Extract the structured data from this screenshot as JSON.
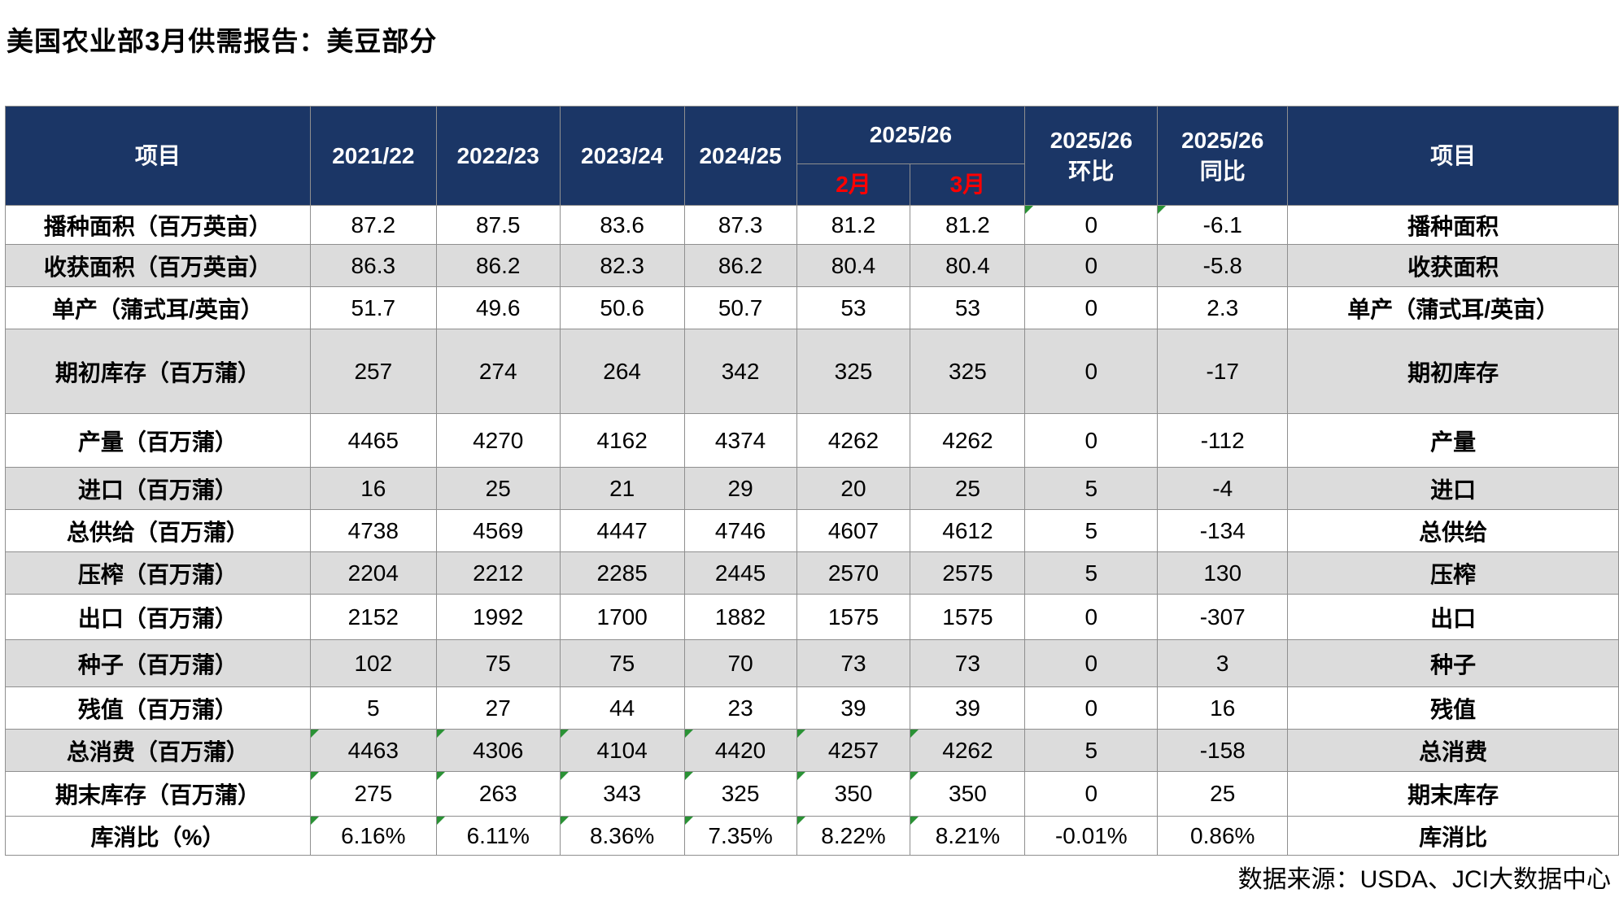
{
  "title": "美国农业部3月供需报告：美豆部分",
  "source_note": "数据来源：USDA、JCI大数据中心",
  "colors": {
    "header_bg": "#1b3666",
    "row_alt": "#dcdcdc",
    "month_red": "#ff0000",
    "flag_green": "#2a9235",
    "grid": "#8f8f8f"
  },
  "table": {
    "header": {
      "item_label": "项目",
      "years": [
        "2021/22",
        "2022/23",
        "2023/24",
        "2024/25"
      ],
      "group_label": "2025/26",
      "months": [
        "2月",
        "3月"
      ],
      "mom_label": "2025/26\n环比",
      "yoy_label": "2025/26\n同比",
      "item_label_right": "项目"
    },
    "rows": [
      {
        "label": "播种面积（百万英亩）",
        "values": [
          "87.2",
          "87.5",
          "83.6",
          "87.3",
          "81.2",
          "81.2",
          "0",
          "-6.1"
        ],
        "label_right": "播种面积",
        "marks": [
          6,
          7
        ]
      },
      {
        "label": "收获面积（百万英亩）",
        "values": [
          "86.3",
          "86.2",
          "82.3",
          "86.2",
          "80.4",
          "80.4",
          "0",
          "-5.8"
        ],
        "label_right": "收获面积",
        "marks": []
      },
      {
        "label": "单产（蒲式耳/英亩）",
        "values": [
          "51.7",
          "49.6",
          "50.6",
          "50.7",
          "53",
          "53",
          "0",
          "2.3"
        ],
        "label_right": "单产（蒲式耳/英亩）",
        "marks": []
      },
      {
        "label": "期初库存（百万蒲）",
        "values": [
          "257",
          "274",
          "264",
          "342",
          "325",
          "325",
          "0",
          "-17"
        ],
        "label_right": "期初库存",
        "marks": []
      },
      {
        "label": "产量（百万蒲）",
        "values": [
          "4465",
          "4270",
          "4162",
          "4374",
          "4262",
          "4262",
          "0",
          "-112"
        ],
        "label_right": "产量",
        "marks": []
      },
      {
        "label": "进口（百万蒲）",
        "values": [
          "16",
          "25",
          "21",
          "29",
          "20",
          "25",
          "5",
          "-4"
        ],
        "label_right": "进口",
        "marks": []
      },
      {
        "label": "总供给（百万蒲）",
        "values": [
          "4738",
          "4569",
          "4447",
          "4746",
          "4607",
          "4612",
          "5",
          "-134"
        ],
        "label_right": "总供给",
        "marks": []
      },
      {
        "label": "压榨（百万蒲）",
        "values": [
          "2204",
          "2212",
          "2285",
          "2445",
          "2570",
          "2575",
          "5",
          "130"
        ],
        "label_right": "压榨",
        "marks": []
      },
      {
        "label": "出口（百万蒲）",
        "values": [
          "2152",
          "1992",
          "1700",
          "1882",
          "1575",
          "1575",
          "0",
          "-307"
        ],
        "label_right": "出口",
        "marks": []
      },
      {
        "label": "种子（百万蒲）",
        "values": [
          "102",
          "75",
          "75",
          "70",
          "73",
          "73",
          "0",
          "3"
        ],
        "label_right": "种子",
        "marks": []
      },
      {
        "label": "残值（百万蒲）",
        "values": [
          "5",
          "27",
          "44",
          "23",
          "39",
          "39",
          "0",
          "16"
        ],
        "label_right": "残值",
        "marks": []
      },
      {
        "label": "总消费（百万蒲）",
        "values": [
          "4463",
          "4306",
          "4104",
          "4420",
          "4257",
          "4262",
          "5",
          "-158"
        ],
        "label_right": "总消费",
        "marks": [
          0,
          1,
          2,
          3,
          4,
          5
        ]
      },
      {
        "label": "期末库存（百万蒲）",
        "values": [
          "275",
          "263",
          "343",
          "325",
          "350",
          "350",
          "0",
          "25"
        ],
        "label_right": "期末库存",
        "marks": [
          0,
          1,
          2,
          3,
          4,
          5
        ]
      },
      {
        "label": "库消比（%）",
        "values": [
          "6.16%",
          "6.11%",
          "8.36%",
          "7.35%",
          "8.22%",
          "8.21%",
          "-0.01%",
          "0.86%"
        ],
        "label_right": "库消比",
        "marks": [
          0,
          1,
          2,
          3,
          4,
          5
        ]
      }
    ]
  }
}
